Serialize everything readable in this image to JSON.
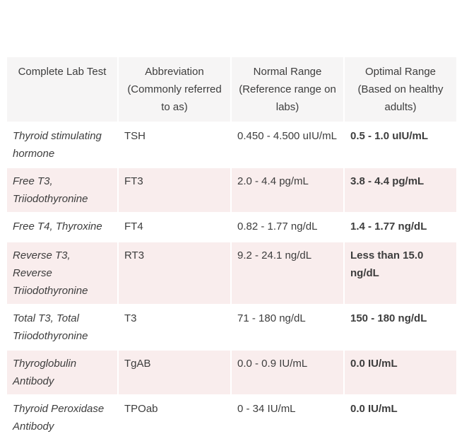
{
  "table": {
    "headers": [
      "Complete Lab Test",
      "Abbreviation (Commonly referred to as)",
      "Normal Range (Reference range on labs)",
      "Optimal Range (Based on healthy adults)"
    ],
    "rows": [
      {
        "test": "Thyroid stimulating hormone",
        "abbr": "TSH",
        "normal": "0.450 - 4.500 uIU/mL",
        "optimal": "0.5 - 1.0 uIU/mL"
      },
      {
        "test": "Free T3, Triiodothyronine",
        "abbr": "FT3",
        "normal": "2.0 - 4.4 pg/mL",
        "optimal": "3.8 - 4.4 pg/mL"
      },
      {
        "test": "Free T4, Thyroxine",
        "abbr": "FT4",
        "normal": "0.82 - 1.77 ng/dL",
        "optimal": "1.4 - 1.77 ng/dL"
      },
      {
        "test": "Reverse T3, Reverse Triiodothyronine",
        "abbr": "RT3",
        "normal": "9.2 - 24.1 ng/dL",
        "optimal": "Less than 15.0 ng/dL"
      },
      {
        "test": "Total T3, Total Triiodothyronine",
        "abbr": "T3",
        "normal": "71 - 180 ng/dL",
        "optimal": "150 - 180 ng/dL"
      },
      {
        "test": "Thyroglobulin Antibody",
        "abbr": "TgAB",
        "normal": "0.0 - 0.9 IU/mL",
        "optimal": "0.0 IU/mL"
      },
      {
        "test": "Thyroid Peroxidase Antibody",
        "abbr": "TPOab",
        "normal": "0 - 34 IU/mL",
        "optimal": "0.0 IU/mL"
      }
    ]
  }
}
